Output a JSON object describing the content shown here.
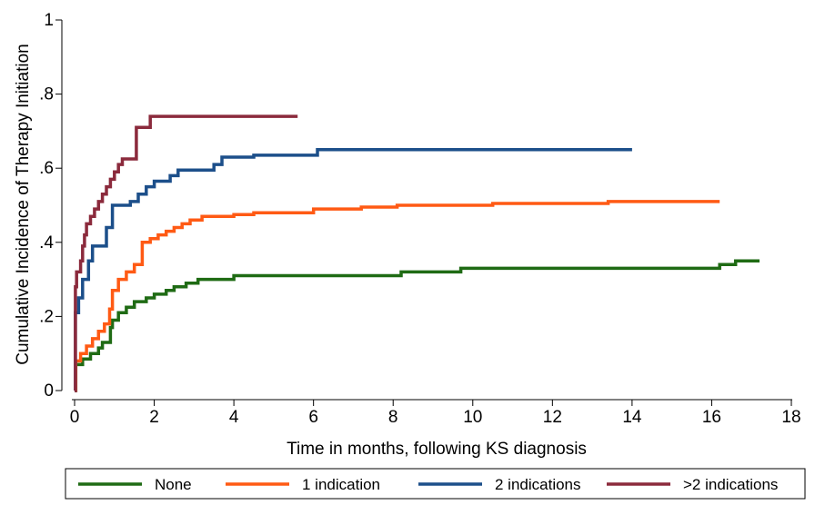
{
  "chart_data": {
    "type": "line",
    "step": true,
    "xlabel": "Time in months, following KS diagnosis",
    "ylabel": "Cumulative Incidence of Therapy Initiation",
    "xlim": [
      0,
      18
    ],
    "ylim": [
      0,
      1
    ],
    "x_ticks": [
      0,
      2,
      4,
      6,
      8,
      10,
      12,
      14,
      16,
      18
    ],
    "x_tick_labels": [
      "0",
      "2",
      "4",
      "6",
      "8",
      "10",
      "12",
      "14",
      "16",
      "18"
    ],
    "y_ticks": [
      0,
      0.2,
      0.4,
      0.6,
      0.8,
      1
    ],
    "y_tick_labels": [
      "0",
      ".2",
      ".4",
      ".6",
      ".8",
      "1"
    ],
    "grid": false,
    "legend_position": "bottom",
    "series": [
      {
        "name": "None",
        "color": "#1f6b14",
        "points": [
          [
            0,
            0
          ],
          [
            0.03,
            0.07
          ],
          [
            0.2,
            0.085
          ],
          [
            0.4,
            0.1
          ],
          [
            0.6,
            0.115
          ],
          [
            0.7,
            0.13
          ],
          [
            0.9,
            0.17
          ],
          [
            0.95,
            0.19
          ],
          [
            1.1,
            0.21
          ],
          [
            1.3,
            0.225
          ],
          [
            1.5,
            0.24
          ],
          [
            1.8,
            0.25
          ],
          [
            2.0,
            0.26
          ],
          [
            2.3,
            0.27
          ],
          [
            2.5,
            0.28
          ],
          [
            2.8,
            0.29
          ],
          [
            3.1,
            0.3
          ],
          [
            4.0,
            0.31
          ],
          [
            8.2,
            0.32
          ],
          [
            9.7,
            0.33
          ],
          [
            16.2,
            0.34
          ],
          [
            16.6,
            0.35
          ],
          [
            17.2,
            0.35
          ]
        ]
      },
      {
        "name": "1 indication",
        "color": "#ff5a14",
        "points": [
          [
            0,
            0
          ],
          [
            0.03,
            0.08
          ],
          [
            0.15,
            0.1
          ],
          [
            0.3,
            0.12
          ],
          [
            0.45,
            0.14
          ],
          [
            0.6,
            0.16
          ],
          [
            0.75,
            0.18
          ],
          [
            0.88,
            0.22
          ],
          [
            0.95,
            0.27
          ],
          [
            1.1,
            0.3
          ],
          [
            1.3,
            0.32
          ],
          [
            1.5,
            0.34
          ],
          [
            1.7,
            0.4
          ],
          [
            1.9,
            0.41
          ],
          [
            2.1,
            0.42
          ],
          [
            2.3,
            0.43
          ],
          [
            2.5,
            0.44
          ],
          [
            2.7,
            0.45
          ],
          [
            2.9,
            0.46
          ],
          [
            3.2,
            0.47
          ],
          [
            4.0,
            0.475
          ],
          [
            4.5,
            0.48
          ],
          [
            6.0,
            0.49
          ],
          [
            7.2,
            0.495
          ],
          [
            8.1,
            0.5
          ],
          [
            10.5,
            0.505
          ],
          [
            13.4,
            0.51
          ],
          [
            16.2,
            0.51
          ]
        ]
      },
      {
        "name": "2 indications",
        "color": "#1c4f8a",
        "points": [
          [
            0,
            0
          ],
          [
            0.02,
            0.21
          ],
          [
            0.1,
            0.25
          ],
          [
            0.2,
            0.3
          ],
          [
            0.35,
            0.35
          ],
          [
            0.45,
            0.39
          ],
          [
            0.8,
            0.44
          ],
          [
            0.95,
            0.5
          ],
          [
            1.4,
            0.51
          ],
          [
            1.6,
            0.53
          ],
          [
            1.8,
            0.55
          ],
          [
            2.0,
            0.565
          ],
          [
            2.4,
            0.58
          ],
          [
            2.6,
            0.595
          ],
          [
            3.5,
            0.61
          ],
          [
            3.7,
            0.63
          ],
          [
            4.5,
            0.635
          ],
          [
            6.1,
            0.65
          ],
          [
            14.0,
            0.65
          ]
        ]
      },
      {
        "name": ">2 indications",
        "color": "#8b2a3c",
        "points": [
          [
            0,
            0
          ],
          [
            0.02,
            0.28
          ],
          [
            0.05,
            0.32
          ],
          [
            0.15,
            0.35
          ],
          [
            0.2,
            0.39
          ],
          [
            0.25,
            0.42
          ],
          [
            0.3,
            0.45
          ],
          [
            0.4,
            0.47
          ],
          [
            0.5,
            0.49
          ],
          [
            0.6,
            0.51
          ],
          [
            0.7,
            0.53
          ],
          [
            0.8,
            0.55
          ],
          [
            0.9,
            0.57
          ],
          [
            1.0,
            0.59
          ],
          [
            1.1,
            0.61
          ],
          [
            1.2,
            0.625
          ],
          [
            1.55,
            0.71
          ],
          [
            1.9,
            0.74
          ],
          [
            5.6,
            0.74
          ]
        ]
      }
    ]
  }
}
